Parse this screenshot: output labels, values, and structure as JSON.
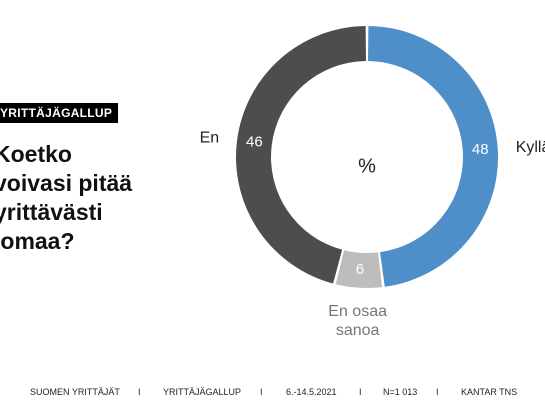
{
  "header": {
    "badge": "YRITTÄJÄGALLUP",
    "question_lines": [
      "Koetko",
      "voivasi pitää",
      "yrittävästi",
      "lomaa?"
    ]
  },
  "chart_data": {
    "type": "pie",
    "center_label": "%",
    "slices": [
      {
        "name": "Kyllä",
        "label_lines": [
          "Kyllä"
        ],
        "value": 48,
        "color": "#4e8fc9"
      },
      {
        "name": "En osaa sanoa",
        "label_lines": [
          "En osaa",
          "sanoa"
        ],
        "value": 6,
        "color": "#bdbdbd"
      },
      {
        "name": "En",
        "label_lines": [
          "En"
        ],
        "value": 46,
        "color": "#4d4d4d"
      }
    ]
  },
  "footer": {
    "items": [
      "SUOMEN YRITTÄJÄT",
      "I",
      "YRITTÄJÄGALLUP",
      "I",
      "6.-14.5.2021",
      "I",
      "N=1 013",
      "I",
      "KANTAR TNS"
    ]
  }
}
